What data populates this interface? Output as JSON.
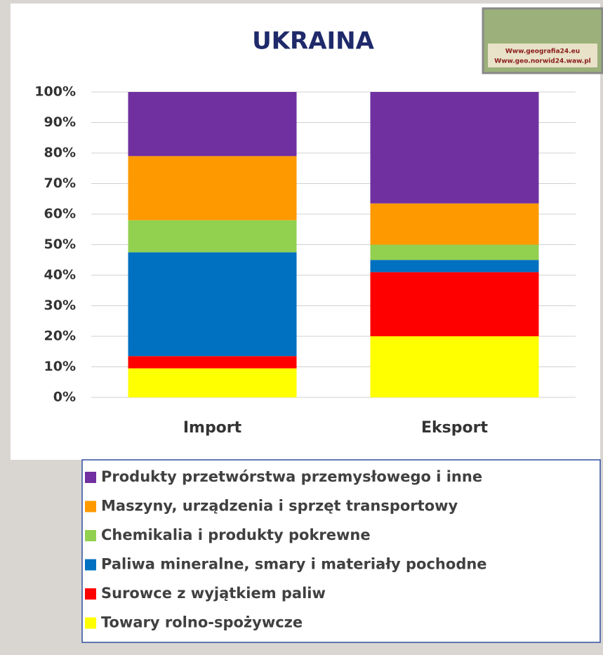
{
  "chart_data": {
    "type": "stacked_bar_100",
    "title": "UKRAINA",
    "logo": {
      "line1": "Www.geografia24.eu",
      "line2": "Www.geo.norwid24.waw.pl"
    },
    "categories": [
      "Import",
      "Eksport"
    ],
    "series": [
      {
        "name": "Towary  rolno-spożywcze",
        "color": "#ffff00",
        "values": [
          9.5,
          20
        ]
      },
      {
        "name": "Surowce z wyjątkiem paliw",
        "color": "#ff0000",
        "values": [
          4,
          21
        ]
      },
      {
        "name": "Paliwa mineralne, smary i materiały pochodne",
        "color": "#0070c0",
        "values": [
          34,
          4
        ]
      },
      {
        "name": "Chemikalia i produkty pokrewne",
        "color": "#92d050",
        "values": [
          10.5,
          5
        ]
      },
      {
        "name": "Maszyny, urządzenia i sprzęt transportowy",
        "color": "#ff9900",
        "values": [
          21,
          13.5
        ]
      },
      {
        "name": "Produkty przetwórstwa przemysłowego i inne",
        "color": "#7030a0",
        "values": [
          21,
          36.5
        ]
      }
    ],
    "ylim": [
      0,
      100
    ],
    "yticks": [
      {
        "value": 0,
        "label": "0%"
      },
      {
        "value": 10,
        "label": "10%"
      },
      {
        "value": 20,
        "label": "20%"
      },
      {
        "value": 30,
        "label": "30%"
      },
      {
        "value": 40,
        "label": "40%"
      },
      {
        "value": 50,
        "label": "50%"
      },
      {
        "value": 60,
        "label": "60%"
      },
      {
        "value": 70,
        "label": "70%"
      },
      {
        "value": 80,
        "label": "80%"
      },
      {
        "value": 90,
        "label": "90%"
      },
      {
        "value": 100,
        "label": "100%"
      }
    ],
    "grid": true
  }
}
